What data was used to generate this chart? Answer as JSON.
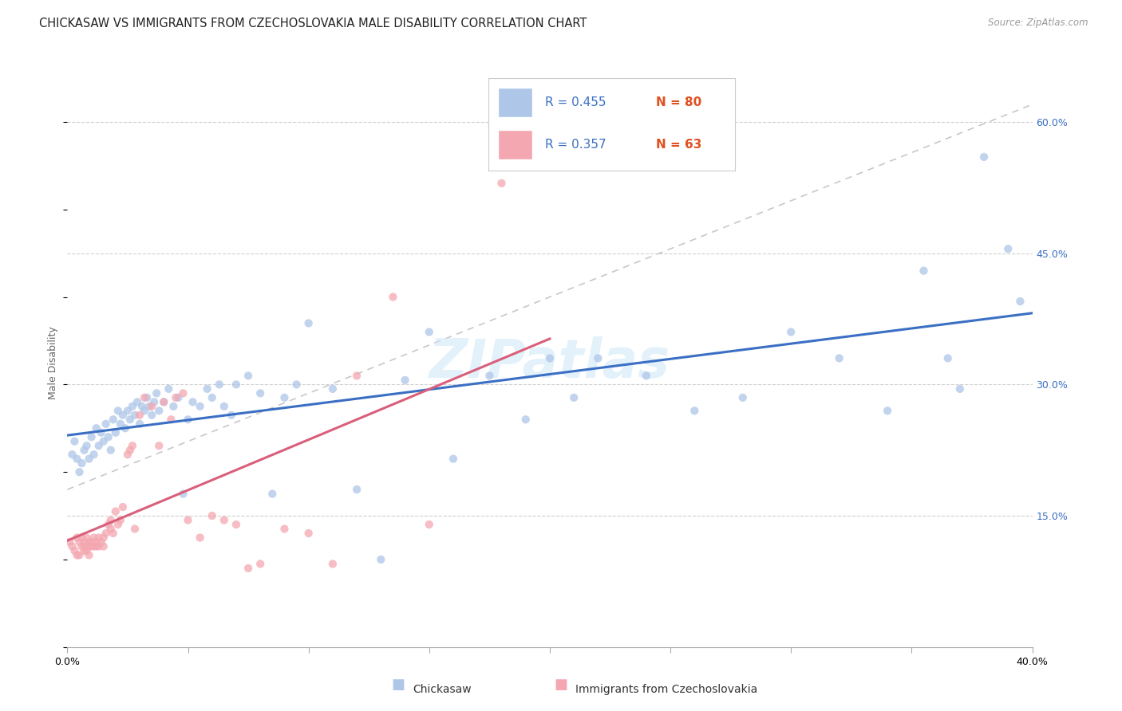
{
  "title": "CHICKASAW VS IMMIGRANTS FROM CZECHOSLOVAKIA MALE DISABILITY CORRELATION CHART",
  "source": "Source: ZipAtlas.com",
  "ylabel": "Male Disability",
  "xlim": [
    0.0,
    0.4
  ],
  "ylim": [
    0.0,
    0.65
  ],
  "y_ticks_right": [
    0.15,
    0.3,
    0.45,
    0.6
  ],
  "y_tick_labels_right": [
    "15.0%",
    "30.0%",
    "45.0%",
    "60.0%"
  ],
  "blue_color": "#aec6e8",
  "pink_color": "#f4a7b0",
  "blue_line_color": "#3a6fc4",
  "pink_line_color": "#d95f7b",
  "diagonal_line_color": "#c8c8c8",
  "watermark": "ZIPatlas",
  "blue_scatter_x": [
    0.002,
    0.003,
    0.004,
    0.005,
    0.006,
    0.007,
    0.008,
    0.009,
    0.01,
    0.011,
    0.012,
    0.013,
    0.014,
    0.015,
    0.016,
    0.017,
    0.018,
    0.019,
    0.02,
    0.021,
    0.022,
    0.023,
    0.024,
    0.025,
    0.026,
    0.027,
    0.028,
    0.029,
    0.03,
    0.031,
    0.032,
    0.033,
    0.034,
    0.035,
    0.036,
    0.037,
    0.038,
    0.04,
    0.042,
    0.044,
    0.046,
    0.048,
    0.05,
    0.052,
    0.055,
    0.058,
    0.06,
    0.063,
    0.065,
    0.068,
    0.07,
    0.075,
    0.08,
    0.085,
    0.09,
    0.095,
    0.1,
    0.11,
    0.12,
    0.13,
    0.14,
    0.15,
    0.16,
    0.175,
    0.19,
    0.2,
    0.21,
    0.22,
    0.24,
    0.26,
    0.28,
    0.3,
    0.32,
    0.34,
    0.355,
    0.365,
    0.37,
    0.38,
    0.39,
    0.395
  ],
  "blue_scatter_y": [
    0.22,
    0.235,
    0.215,
    0.2,
    0.21,
    0.225,
    0.23,
    0.215,
    0.24,
    0.22,
    0.25,
    0.23,
    0.245,
    0.235,
    0.255,
    0.24,
    0.225,
    0.26,
    0.245,
    0.27,
    0.255,
    0.265,
    0.25,
    0.27,
    0.26,
    0.275,
    0.265,
    0.28,
    0.255,
    0.275,
    0.27,
    0.285,
    0.275,
    0.265,
    0.28,
    0.29,
    0.27,
    0.28,
    0.295,
    0.275,
    0.285,
    0.175,
    0.26,
    0.28,
    0.275,
    0.295,
    0.285,
    0.3,
    0.275,
    0.265,
    0.3,
    0.31,
    0.29,
    0.175,
    0.285,
    0.3,
    0.37,
    0.295,
    0.18,
    0.1,
    0.305,
    0.36,
    0.215,
    0.31,
    0.26,
    0.33,
    0.285,
    0.33,
    0.31,
    0.27,
    0.285,
    0.36,
    0.33,
    0.27,
    0.43,
    0.33,
    0.295,
    0.56,
    0.455,
    0.395
  ],
  "pink_scatter_x": [
    0.001,
    0.002,
    0.003,
    0.004,
    0.004,
    0.005,
    0.005,
    0.006,
    0.006,
    0.007,
    0.007,
    0.007,
    0.008,
    0.008,
    0.009,
    0.009,
    0.009,
    0.01,
    0.01,
    0.011,
    0.011,
    0.012,
    0.012,
    0.013,
    0.013,
    0.014,
    0.015,
    0.015,
    0.016,
    0.017,
    0.018,
    0.018,
    0.019,
    0.02,
    0.021,
    0.022,
    0.023,
    0.025,
    0.026,
    0.027,
    0.028,
    0.03,
    0.032,
    0.035,
    0.038,
    0.04,
    0.043,
    0.045,
    0.048,
    0.05,
    0.055,
    0.06,
    0.065,
    0.07,
    0.075,
    0.08,
    0.09,
    0.1,
    0.11,
    0.12,
    0.135,
    0.15,
    0.18
  ],
  "pink_scatter_y": [
    0.12,
    0.115,
    0.11,
    0.125,
    0.105,
    0.12,
    0.105,
    0.115,
    0.125,
    0.11,
    0.12,
    0.115,
    0.125,
    0.11,
    0.12,
    0.115,
    0.105,
    0.12,
    0.115,
    0.125,
    0.115,
    0.12,
    0.115,
    0.125,
    0.115,
    0.12,
    0.125,
    0.115,
    0.13,
    0.14,
    0.135,
    0.145,
    0.13,
    0.155,
    0.14,
    0.145,
    0.16,
    0.22,
    0.225,
    0.23,
    0.135,
    0.265,
    0.285,
    0.275,
    0.23,
    0.28,
    0.26,
    0.285,
    0.29,
    0.145,
    0.125,
    0.15,
    0.145,
    0.14,
    0.09,
    0.095,
    0.135,
    0.13,
    0.095,
    0.31,
    0.4,
    0.14,
    0.53
  ],
  "title_fontsize": 10.5,
  "axis_label_fontsize": 9,
  "tick_fontsize": 9,
  "legend_text_color": "#3a6fc4",
  "legend_n_color": "#e05020"
}
